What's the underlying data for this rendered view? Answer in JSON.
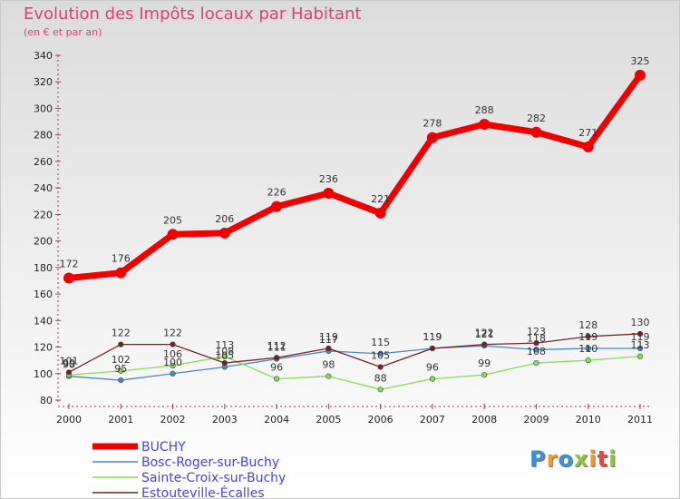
{
  "title": "Evolution des Impôts locaux par Habitant",
  "subtitle": "(en € et par an)",
  "logo": {
    "text": "Proxiti",
    "letters": [
      "P",
      "r",
      "o",
      "x",
      "i",
      "t",
      "i"
    ],
    "colors": [
      "#3c8fd8",
      "#f39a2a",
      "#3c8fd8",
      "#8cc63f",
      "#f39a2a",
      "#e8463a",
      "#8cc63f"
    ]
  },
  "chart_data": {
    "type": "line",
    "title": "Evolution des Impôts locaux par Habitant",
    "subtitle": "(en € et par an)",
    "xlabel": "",
    "ylabel": "",
    "ylim": [
      80,
      340
    ],
    "yticks": [
      80,
      100,
      120,
      140,
      160,
      180,
      200,
      220,
      240,
      260,
      280,
      300,
      320,
      340
    ],
    "grid": false,
    "legend_position": "bottom-left",
    "categories": [
      "2000",
      "2001",
      "2002",
      "2003",
      "2004",
      "2005",
      "2006",
      "2007",
      "2008",
      "2009",
      "2010",
      "2011"
    ],
    "series": [
      {
        "name": "BUCHY",
        "color": "#ee0000",
        "width": 7,
        "marker": 6,
        "values": [
          172,
          176,
          205,
          206,
          226,
          236,
          221,
          278,
          288,
          282,
          271,
          325
        ],
        "labels": [
          "172",
          "176",
          "205",
          "206",
          "226",
          "236",
          "221",
          "278",
          "288",
          "282",
          "271",
          "325"
        ]
      },
      {
        "name": "Bosc-Roger-sur-Buchy",
        "color": "#4a88c8",
        "width": 1.3,
        "marker": 2.8,
        "values": [
          98,
          95,
          100,
          105,
          111,
          117,
          115,
          119,
          121,
          118,
          119,
          119
        ],
        "labels": [
          "98",
          "95",
          "100",
          "105",
          "111",
          "117",
          "115",
          "119",
          "121",
          "118",
          "119",
          "119"
        ]
      },
      {
        "name": "Sainte-Croix-sur-Buchy",
        "color": "#88dd55",
        "width": 1.3,
        "marker": 2.8,
        "values": [
          99,
          102,
          106,
          113,
          96,
          98,
          88,
          96,
          99,
          108,
          110,
          113
        ],
        "labels": [
          "99",
          "102",
          "106",
          "113",
          "96",
          "98",
          "88",
          "96",
          "99",
          "108",
          "110",
          "113"
        ]
      },
      {
        "name": "Estouteville-Écalles",
        "color": "#772222",
        "width": 1.3,
        "marker": 2.8,
        "values": [
          101,
          122,
          122,
          108,
          112,
          119,
          105,
          119,
          122,
          123,
          128,
          130
        ],
        "labels": [
          "101",
          "122",
          "122",
          "108",
          "112",
          "119",
          "105",
          "119",
          "122",
          "123",
          "128",
          "130"
        ]
      }
    ]
  }
}
